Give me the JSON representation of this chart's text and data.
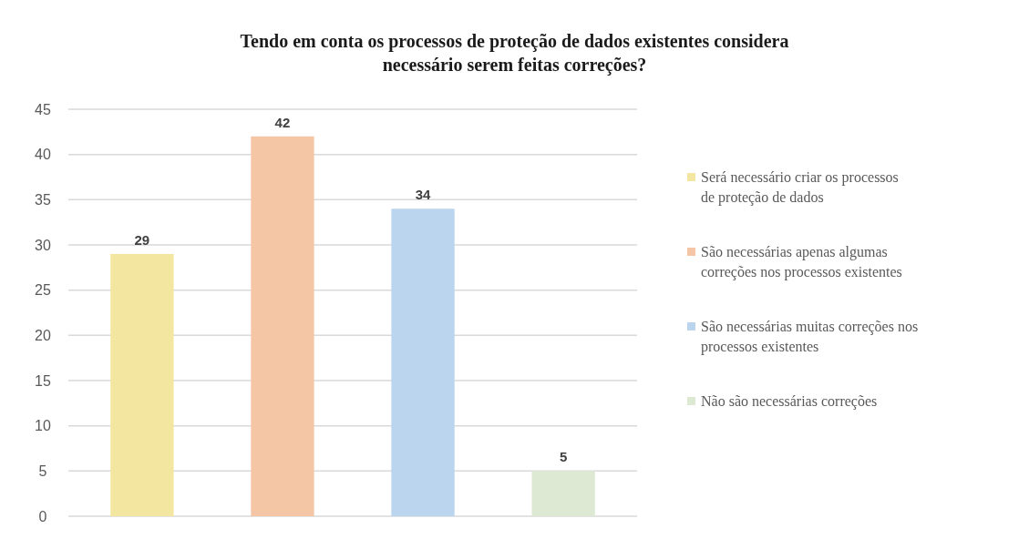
{
  "chart_data": {
    "type": "bar",
    "title": "Tendo em conta os processos de proteção de dados existentes considera necessário serem feitas correções?",
    "categories": [
      null,
      null,
      null,
      null
    ],
    "series": [
      {
        "name": "Será necessário criar os processos de proteção de dados",
        "color": "#f2e6a0",
        "values": [
          29,
          null,
          null,
          null
        ]
      },
      {
        "name": "São necessárias apenas algumas correções nos processos existentes",
        "color": "#f5c6a5",
        "values": [
          null,
          42,
          null,
          null
        ]
      },
      {
        "name": "São necessárias muitas correções nos processos existentes",
        "color": "#bcd5ee",
        "values": [
          null,
          null,
          34,
          null
        ]
      },
      {
        "name": "Não são necessárias correções",
        "color": "#dde9d3",
        "values": [
          null,
          null,
          null,
          5
        ]
      }
    ],
    "ylim": [
      0,
      45
    ],
    "yticks": [
      0,
      5,
      10,
      15,
      20,
      25,
      30,
      35,
      40,
      45
    ],
    "grid": "y",
    "legend": "right",
    "data_labels": true
  }
}
